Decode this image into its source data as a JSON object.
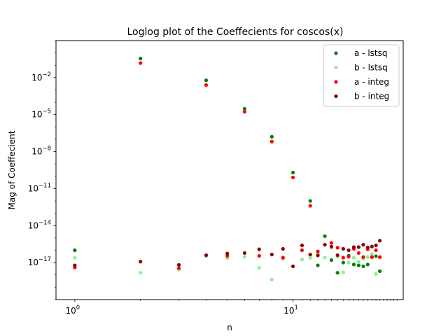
{
  "chart_data": {
    "type": "scatter",
    "title": "Loglog plot of the Coeffecients for coscos(x)",
    "xlabel": "n",
    "ylabel": "Mag of Coeffecient",
    "xscale": "log",
    "yscale": "log",
    "xlim": [
      0.82,
      32
    ],
    "ylim": [
      1e-20,
      10.0
    ],
    "x_ticks": [
      {
        "value": 1,
        "label": "10",
        "exp": "0"
      },
      {
        "value": 10,
        "label": "10",
        "exp": "1"
      }
    ],
    "y_ticks": [
      {
        "value": 1e-17,
        "label": "10",
        "exp": "−17"
      },
      {
        "value": 1e-14,
        "label": "10",
        "exp": "−14"
      },
      {
        "value": 1e-11,
        "label": "10",
        "exp": "−11"
      },
      {
        "value": 1e-08,
        "label": "10",
        "exp": "−8"
      },
      {
        "value": 1e-05,
        "label": "10",
        "exp": "−5"
      },
      {
        "value": 0.01,
        "label": "10",
        "exp": "−2"
      }
    ],
    "grid": false,
    "legend_position": "top-right",
    "series": [
      {
        "name": "a - lstsq",
        "color": "#008000",
        "points": [
          [
            1,
            1e-16
          ],
          [
            2,
            0.35
          ],
          [
            4,
            0.006
          ],
          [
            6,
            3e-05
          ],
          [
            8,
            1.6e-07
          ],
          [
            10,
            2e-10
          ],
          [
            12,
            1e-12
          ],
          [
            13,
            6e-18
          ],
          [
            14,
            1.4e-15
          ],
          [
            15,
            1.6e-17
          ],
          [
            16,
            1.5e-18
          ],
          [
            17,
            1e-17
          ],
          [
            18,
            3.6e-17
          ],
          [
            19,
            7e-18
          ],
          [
            20,
            6e-18
          ],
          [
            21,
            5e-18
          ],
          [
            22,
            7e-18
          ],
          [
            23,
            2.8e-17
          ],
          [
            24,
            3.3e-17
          ],
          [
            25,
            2e-18
          ]
        ]
      },
      {
        "name": "b - lstsq",
        "color": "#90ee90",
        "points": [
          [
            1,
            2.5e-17
          ],
          [
            2,
            1.5e-18
          ],
          [
            3,
            2.8e-18
          ],
          [
            4,
            3.2e-17
          ],
          [
            5,
            2.3e-17
          ],
          [
            6,
            3e-17
          ],
          [
            7,
            3.8e-18
          ],
          [
            8,
            4.2e-19
          ],
          [
            9,
            2e-17
          ],
          [
            11,
            1.8e-17
          ],
          [
            12,
            2.4e-17
          ],
          [
            13,
            5e-17
          ],
          [
            14,
            2.6e-17
          ],
          [
            15,
            1.6e-16
          ],
          [
            16,
            3e-17
          ],
          [
            17,
            1.6e-18
          ],
          [
            18,
            1e-17
          ],
          [
            19,
            2.5e-17
          ],
          [
            20,
            1.2e-17
          ],
          [
            21,
            2e-17
          ],
          [
            22,
            2.8e-17
          ],
          [
            23,
            5e-17
          ],
          [
            24,
            1.2e-18
          ],
          [
            25,
            2.8e-17
          ]
        ]
      },
      {
        "name": "a - integ",
        "color": "#ff0000",
        "points": [
          [
            1,
            4e-18
          ],
          [
            2,
            0.15
          ],
          [
            3,
            3.5e-18
          ],
          [
            4,
            0.0025
          ],
          [
            5,
            3.5e-17
          ],
          [
            6,
            1.7e-05
          ],
          [
            7,
            3.5e-17
          ],
          [
            8,
            6.5e-08
          ],
          [
            9,
            2.5e-17
          ],
          [
            10,
            8e-11
          ],
          [
            11,
            1e-16
          ],
          [
            12,
            4e-13
          ],
          [
            13,
            8e-17
          ],
          [
            15,
            4e-16
          ],
          [
            16,
            1.6e-16
          ],
          [
            17,
            2.5e-17
          ],
          [
            18,
            3e-17
          ],
          [
            19,
            1.3e-16
          ],
          [
            20,
            6e-17
          ],
          [
            21,
            2.8e-17
          ],
          [
            22,
            1.2e-16
          ],
          [
            23,
            2.8e-17
          ],
          [
            24,
            1e-16
          ],
          [
            25,
            2.8e-17
          ]
        ]
      },
      {
        "name": "b - integ",
        "color": "#8b0000",
        "points": [
          [
            1,
            6e-18
          ],
          [
            2,
            1.2e-17
          ],
          [
            3,
            6.5e-18
          ],
          [
            4,
            4e-17
          ],
          [
            5,
            5.5e-17
          ],
          [
            6,
            6e-17
          ],
          [
            7,
            1.2e-16
          ],
          [
            8,
            4.5e-17
          ],
          [
            9,
            1.3e-16
          ],
          [
            10,
            5e-18
          ],
          [
            11,
            2.5e-16
          ],
          [
            12,
            4.5e-17
          ],
          [
            13,
            3.8e-17
          ],
          [
            14,
            2.8e-16
          ],
          [
            15,
            2e-16
          ],
          [
            16,
            4e-17
          ],
          [
            17,
            1.3e-16
          ],
          [
            18,
            1e-16
          ],
          [
            19,
            1.8e-16
          ],
          [
            20,
            1.8e-16
          ],
          [
            21,
            2.8e-16
          ],
          [
            22,
            1.7e-16
          ],
          [
            23,
            2e-16
          ],
          [
            24,
            2.5e-16
          ],
          [
            25,
            6e-16
          ]
        ]
      }
    ]
  }
}
